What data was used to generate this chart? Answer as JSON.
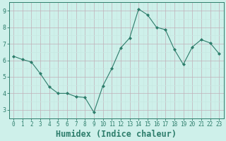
{
  "x": [
    0,
    1,
    2,
    3,
    4,
    5,
    6,
    7,
    8,
    9,
    10,
    11,
    12,
    13,
    14,
    15,
    16,
    17,
    18,
    19,
    20,
    21,
    22,
    23
  ],
  "y": [
    6.25,
    6.05,
    5.9,
    5.2,
    4.4,
    4.0,
    4.0,
    3.8,
    3.75,
    2.85,
    4.45,
    5.5,
    6.75,
    7.35,
    9.1,
    8.75,
    8.0,
    7.85,
    6.65,
    5.75,
    6.8,
    7.25,
    7.05,
    6.4
  ],
  "line_color": "#2d7d6b",
  "marker": "D",
  "marker_size": 2.0,
  "bg_color": "#cef0ea",
  "grid_color_major": "#c0b0b8",
  "grid_color_minor": "#c8e8e2",
  "xlabel": "Humidex (Indice chaleur)",
  "ylim": [
    2.5,
    9.5
  ],
  "xlim": [
    -0.5,
    23.5
  ],
  "yticks": [
    3,
    4,
    5,
    6,
    7,
    8,
    9
  ],
  "xticks": [
    0,
    1,
    2,
    3,
    4,
    5,
    6,
    7,
    8,
    9,
    10,
    11,
    12,
    13,
    14,
    15,
    16,
    17,
    18,
    19,
    20,
    21,
    22,
    23
  ],
  "tick_fontsize": 6.0,
  "xlabel_fontsize": 8.5,
  "axis_color": "#2d7d6b",
  "spine_color": "#2d7d6b",
  "label_color": "#2d7d6b"
}
